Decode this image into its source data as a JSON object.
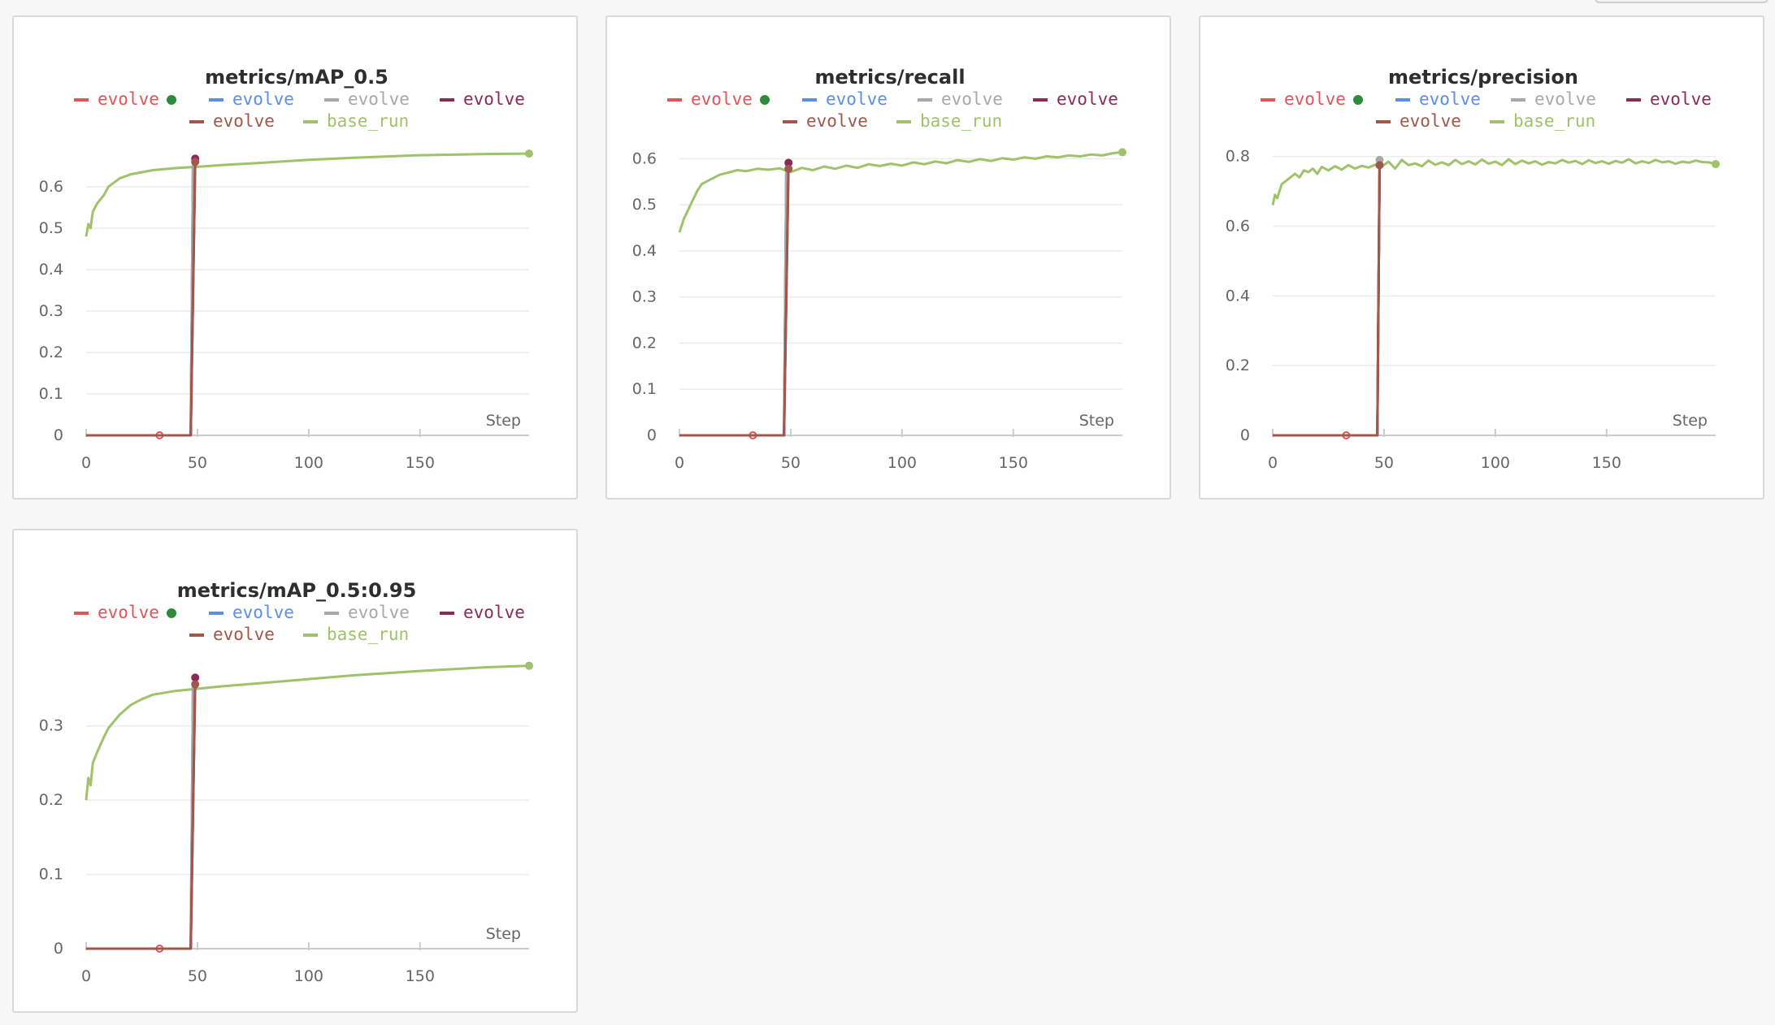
{
  "chart_data": [
    {
      "type": "line",
      "title": "metrics/mAP_0.5",
      "xlabel": "Step",
      "xlim": [
        0,
        199
      ],
      "ylim": [
        0,
        0.69
      ],
      "x_ticks": [
        0,
        50,
        100,
        150
      ],
      "y_ticks": [
        0,
        0.1,
        0.2,
        0.3,
        0.4,
        0.5,
        0.6
      ],
      "legend": [
        "evolve",
        "evolve",
        "evolve",
        "evolve",
        "evolve",
        "base_run"
      ],
      "series": [
        {
          "name": "evolve",
          "color": "#e0545a",
          "points": [
            [
              0,
              0
            ],
            [
              33,
              0
            ],
            [
              47,
              0
            ],
            [
              48,
              0.66
            ]
          ],
          "highlight_x": 33
        },
        {
          "name": "evolve",
          "color": "#5b8ee5",
          "points": [
            [
              0,
              0
            ],
            [
              47,
              0
            ],
            [
              48,
              0.66
            ]
          ]
        },
        {
          "name": "evolve",
          "color": "#a8a8a8",
          "points": [
            [
              0,
              0
            ],
            [
              47,
              0
            ],
            [
              48,
              0.66
            ]
          ]
        },
        {
          "name": "evolve",
          "color": "#8b2a5a",
          "points": [
            [
              0,
              0
            ],
            [
              47,
              0
            ],
            [
              49,
              0.668
            ]
          ],
          "end_marker": true
        },
        {
          "name": "evolve",
          "color": "#a0584a",
          "points": [
            [
              0,
              0
            ],
            [
              47,
              0
            ],
            [
              49,
              0.66
            ]
          ],
          "end_marker": true
        },
        {
          "name": "base_run",
          "color": "#9fc26a",
          "points": [
            [
              0,
              0.48
            ],
            [
              1,
              0.51
            ],
            [
              2,
              0.5
            ],
            [
              3,
              0.54
            ],
            [
              5,
              0.56
            ],
            [
              8,
              0.58
            ],
            [
              10,
              0.6
            ],
            [
              15,
              0.62
            ],
            [
              20,
              0.63
            ],
            [
              30,
              0.64
            ],
            [
              40,
              0.645
            ],
            [
              50,
              0.648
            ],
            [
              60,
              0.652
            ],
            [
              80,
              0.658
            ],
            [
              100,
              0.665
            ],
            [
              120,
              0.67
            ],
            [
              150,
              0.676
            ],
            [
              180,
              0.679
            ],
            [
              199,
              0.68
            ]
          ],
          "end_marker": true
        }
      ]
    },
    {
      "type": "line",
      "title": "metrics/recall",
      "xlabel": "Step",
      "xlim": [
        0,
        199
      ],
      "ylim": [
        0,
        0.62
      ],
      "x_ticks": [
        0,
        50,
        100,
        150
      ],
      "y_ticks": [
        0,
        0.1,
        0.2,
        0.3,
        0.4,
        0.5,
        0.6
      ],
      "legend": [
        "evolve",
        "evolve",
        "evolve",
        "evolve",
        "evolve",
        "base_run"
      ],
      "series": [
        {
          "name": "evolve",
          "color": "#e0545a",
          "points": [
            [
              0,
              0
            ],
            [
              33,
              0
            ],
            [
              47,
              0
            ],
            [
              48,
              0.58
            ]
          ],
          "highlight_x": 33
        },
        {
          "name": "evolve",
          "color": "#5b8ee5",
          "points": [
            [
              0,
              0
            ],
            [
              47,
              0
            ],
            [
              48,
              0.58
            ]
          ]
        },
        {
          "name": "evolve",
          "color": "#a8a8a8",
          "points": [
            [
              0,
              0
            ],
            [
              47,
              0
            ],
            [
              48,
              0.58
            ]
          ]
        },
        {
          "name": "evolve",
          "color": "#8b2a5a",
          "points": [
            [
              0,
              0
            ],
            [
              47,
              0
            ],
            [
              49,
              0.591
            ]
          ],
          "end_marker": true
        },
        {
          "name": "evolve",
          "color": "#a0584a",
          "points": [
            [
              0,
              0
            ],
            [
              47,
              0
            ],
            [
              49,
              0.578
            ]
          ],
          "end_marker": true
        },
        {
          "name": "base_run",
          "color": "#9fc26a",
          "points": [
            [
              0,
              0.44
            ],
            [
              2,
              0.47
            ],
            [
              4,
              0.49
            ],
            [
              6,
              0.51
            ],
            [
              8,
              0.53
            ],
            [
              10,
              0.545
            ],
            [
              14,
              0.555
            ],
            [
              18,
              0.565
            ],
            [
              22,
              0.57
            ],
            [
              26,
              0.575
            ],
            [
              30,
              0.573
            ],
            [
              35,
              0.578
            ],
            [
              40,
              0.576
            ],
            [
              45,
              0.579
            ],
            [
              50,
              0.571
            ],
            [
              55,
              0.58
            ],
            [
              60,
              0.575
            ],
            [
              65,
              0.583
            ],
            [
              70,
              0.578
            ],
            [
              75,
              0.585
            ],
            [
              80,
              0.58
            ],
            [
              85,
              0.588
            ],
            [
              90,
              0.584
            ],
            [
              95,
              0.589
            ],
            [
              100,
              0.585
            ],
            [
              105,
              0.592
            ],
            [
              110,
              0.588
            ],
            [
              115,
              0.594
            ],
            [
              120,
              0.59
            ],
            [
              125,
              0.597
            ],
            [
              130,
              0.593
            ],
            [
              135,
              0.599
            ],
            [
              140,
              0.595
            ],
            [
              145,
              0.601
            ],
            [
              150,
              0.598
            ],
            [
              155,
              0.603
            ],
            [
              160,
              0.6
            ],
            [
              165,
              0.605
            ],
            [
              170,
              0.603
            ],
            [
              175,
              0.607
            ],
            [
              180,
              0.605
            ],
            [
              185,
              0.609
            ],
            [
              190,
              0.607
            ],
            [
              195,
              0.612
            ],
            [
              199,
              0.614
            ]
          ],
          "end_marker": true
        }
      ]
    },
    {
      "type": "line",
      "title": "metrics/precision",
      "xlabel": "Step",
      "xlim": [
        0,
        199
      ],
      "ylim": [
        0,
        0.82
      ],
      "x_ticks": [
        0,
        50,
        100,
        150
      ],
      "y_ticks": [
        0,
        0.2,
        0.4,
        0.6,
        0.8
      ],
      "legend": [
        "evolve",
        "evolve",
        "evolve",
        "evolve",
        "evolve",
        "base_run"
      ],
      "series": [
        {
          "name": "evolve",
          "color": "#e0545a",
          "points": [
            [
              0,
              0
            ],
            [
              33,
              0
            ],
            [
              47,
              0
            ],
            [
              48,
              0.78
            ]
          ],
          "highlight_x": 33
        },
        {
          "name": "evolve",
          "color": "#5b8ee5",
          "points": [
            [
              0,
              0
            ],
            [
              47,
              0
            ],
            [
              48,
              0.78
            ]
          ]
        },
        {
          "name": "evolve",
          "color": "#a8a8a8",
          "points": [
            [
              0,
              0
            ],
            [
              47,
              0
            ],
            [
              48,
              0.79
            ]
          ],
          "end_marker": true
        },
        {
          "name": "evolve",
          "color": "#8b2a5a",
          "points": [
            [
              0,
              0
            ],
            [
              47,
              0
            ],
            [
              48,
              0.781
            ]
          ]
        },
        {
          "name": "evolve",
          "color": "#a0584a",
          "points": [
            [
              0,
              0
            ],
            [
              47,
              0
            ],
            [
              48,
              0.775
            ]
          ],
          "end_marker": true
        },
        {
          "name": "base_run",
          "color": "#9fc26a",
          "points": [
            [
              0,
              0.66
            ],
            [
              1,
              0.69
            ],
            [
              2,
              0.68
            ],
            [
              4,
              0.72
            ],
            [
              6,
              0.73
            ],
            [
              8,
              0.74
            ],
            [
              10,
              0.75
            ],
            [
              12,
              0.74
            ],
            [
              14,
              0.76
            ],
            [
              16,
              0.755
            ],
            [
              18,
              0.765
            ],
            [
              20,
              0.75
            ],
            [
              22,
              0.77
            ],
            [
              25,
              0.76
            ],
            [
              28,
              0.772
            ],
            [
              31,
              0.762
            ],
            [
              34,
              0.775
            ],
            [
              37,
              0.765
            ],
            [
              40,
              0.773
            ],
            [
              43,
              0.768
            ],
            [
              46,
              0.776
            ],
            [
              49,
              0.771
            ],
            [
              52,
              0.785
            ],
            [
              55,
              0.765
            ],
            [
              58,
              0.79
            ],
            [
              61,
              0.775
            ],
            [
              64,
              0.78
            ],
            [
              67,
              0.772
            ],
            [
              70,
              0.788
            ],
            [
              73,
              0.776
            ],
            [
              76,
              0.783
            ],
            [
              79,
              0.775
            ],
            [
              82,
              0.79
            ],
            [
              85,
              0.778
            ],
            [
              88,
              0.786
            ],
            [
              91,
              0.777
            ],
            [
              94,
              0.791
            ],
            [
              97,
              0.779
            ],
            [
              100,
              0.785
            ],
            [
              103,
              0.775
            ],
            [
              106,
              0.792
            ],
            [
              109,
              0.778
            ],
            [
              112,
              0.788
            ],
            [
              115,
              0.78
            ],
            [
              118,
              0.786
            ],
            [
              121,
              0.776
            ],
            [
              124,
              0.784
            ],
            [
              127,
              0.78
            ],
            [
              130,
              0.79
            ],
            [
              133,
              0.782
            ],
            [
              136,
              0.787
            ],
            [
              139,
              0.778
            ],
            [
              142,
              0.789
            ],
            [
              145,
              0.781
            ],
            [
              148,
              0.786
            ],
            [
              151,
              0.779
            ],
            [
              154,
              0.787
            ],
            [
              157,
              0.782
            ],
            [
              160,
              0.792
            ],
            [
              163,
              0.78
            ],
            [
              166,
              0.786
            ],
            [
              169,
              0.781
            ],
            [
              172,
              0.79
            ],
            [
              175,
              0.783
            ],
            [
              178,
              0.786
            ],
            [
              181,
              0.779
            ],
            [
              184,
              0.785
            ],
            [
              187,
              0.782
            ],
            [
              190,
              0.788
            ],
            [
              193,
              0.784
            ],
            [
              196,
              0.783
            ],
            [
              199,
              0.778
            ]
          ],
          "end_marker": true
        }
      ]
    },
    {
      "type": "line",
      "title": "metrics/mAP_0.5:0.95",
      "xlabel": "Step",
      "xlim": [
        0,
        199
      ],
      "ylim": [
        0,
        0.385
      ],
      "x_ticks": [
        0,
        50,
        100,
        150
      ],
      "y_ticks": [
        0,
        0.1,
        0.2,
        0.3
      ],
      "legend": [
        "evolve",
        "evolve",
        "evolve",
        "evolve",
        "evolve",
        "base_run"
      ],
      "series": [
        {
          "name": "evolve",
          "color": "#e0545a",
          "points": [
            [
              0,
              0
            ],
            [
              33,
              0
            ],
            [
              47,
              0
            ],
            [
              48,
              0.356
            ]
          ],
          "highlight_x": 33
        },
        {
          "name": "evolve",
          "color": "#5b8ee5",
          "points": [
            [
              0,
              0
            ],
            [
              47,
              0
            ],
            [
              48,
              0.356
            ]
          ]
        },
        {
          "name": "evolve",
          "color": "#a8a8a8",
          "points": [
            [
              0,
              0
            ],
            [
              47,
              0
            ],
            [
              48,
              0.356
            ]
          ]
        },
        {
          "name": "evolve",
          "color": "#8b2a5a",
          "points": [
            [
              0,
              0
            ],
            [
              47,
              0
            ],
            [
              49,
              0.365
            ]
          ],
          "end_marker": true
        },
        {
          "name": "evolve",
          "color": "#a0584a",
          "points": [
            [
              0,
              0
            ],
            [
              47,
              0
            ],
            [
              49,
              0.356
            ]
          ],
          "end_marker": true
        },
        {
          "name": "base_run",
          "color": "#9fc26a",
          "points": [
            [
              0,
              0.2
            ],
            [
              1,
              0.23
            ],
            [
              2,
              0.22
            ],
            [
              3,
              0.25
            ],
            [
              5,
              0.265
            ],
            [
              8,
              0.285
            ],
            [
              10,
              0.297
            ],
            [
              15,
              0.315
            ],
            [
              20,
              0.328
            ],
            [
              25,
              0.336
            ],
            [
              30,
              0.342
            ],
            [
              40,
              0.347
            ],
            [
              50,
              0.35
            ],
            [
              60,
              0.353
            ],
            [
              80,
              0.358
            ],
            [
              100,
              0.363
            ],
            [
              120,
              0.368
            ],
            [
              150,
              0.374
            ],
            [
              180,
              0.379
            ],
            [
              199,
              0.381
            ]
          ],
          "end_marker": true
        }
      ]
    }
  ]
}
